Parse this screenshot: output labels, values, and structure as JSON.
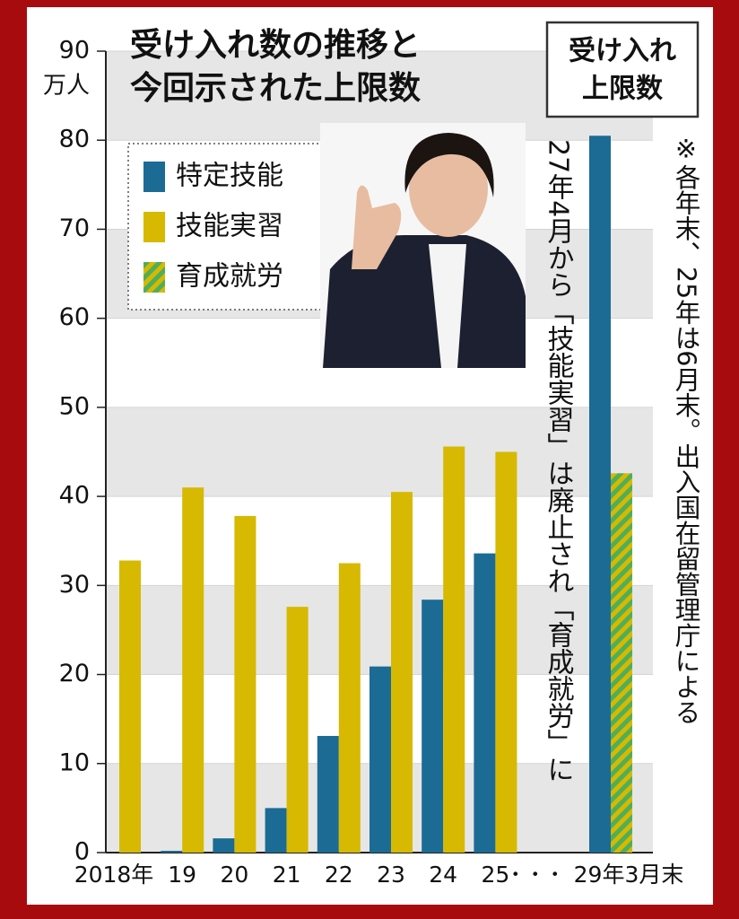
{
  "chart_data": {
    "type": "bar",
    "title": [
      "受け入れ数の推移と",
      "今回示された上限数"
    ],
    "y_unit_label": "万人",
    "categories": [
      "2018年",
      "19",
      "20",
      "21",
      "22",
      "23",
      "24",
      "25",
      "29年3月末"
    ],
    "axis_break_label": "・・・",
    "series": [
      {
        "name": "特定技能",
        "color": "#1b6b95",
        "values": [
          null,
          0.2,
          1.6,
          5.0,
          13.1,
          20.9,
          28.4,
          33.6,
          80.5
        ]
      },
      {
        "name": "技能実習",
        "color": "#d6b900",
        "values": [
          32.8,
          41.0,
          37.8,
          27.6,
          32.5,
          40.5,
          45.6,
          45.0,
          null
        ]
      },
      {
        "name": "育成就労",
        "color": "#4fae5a",
        "pattern": "hatch",
        "values": [
          null,
          null,
          null,
          null,
          null,
          null,
          null,
          null,
          42.6
        ]
      }
    ],
    "ylim": [
      0,
      90
    ],
    "yticks": [
      0,
      10,
      20,
      30,
      40,
      50,
      60,
      70,
      80,
      90
    ],
    "grid": true,
    "legend": "upper-left",
    "limit_box_label": [
      "受け入れ",
      "上限数"
    ],
    "note_transition": "27年4月から「技能実習」は廃止され「育成就労」に",
    "note_source": "※各年末、25年は6月末。出入国在留管理庁による"
  }
}
